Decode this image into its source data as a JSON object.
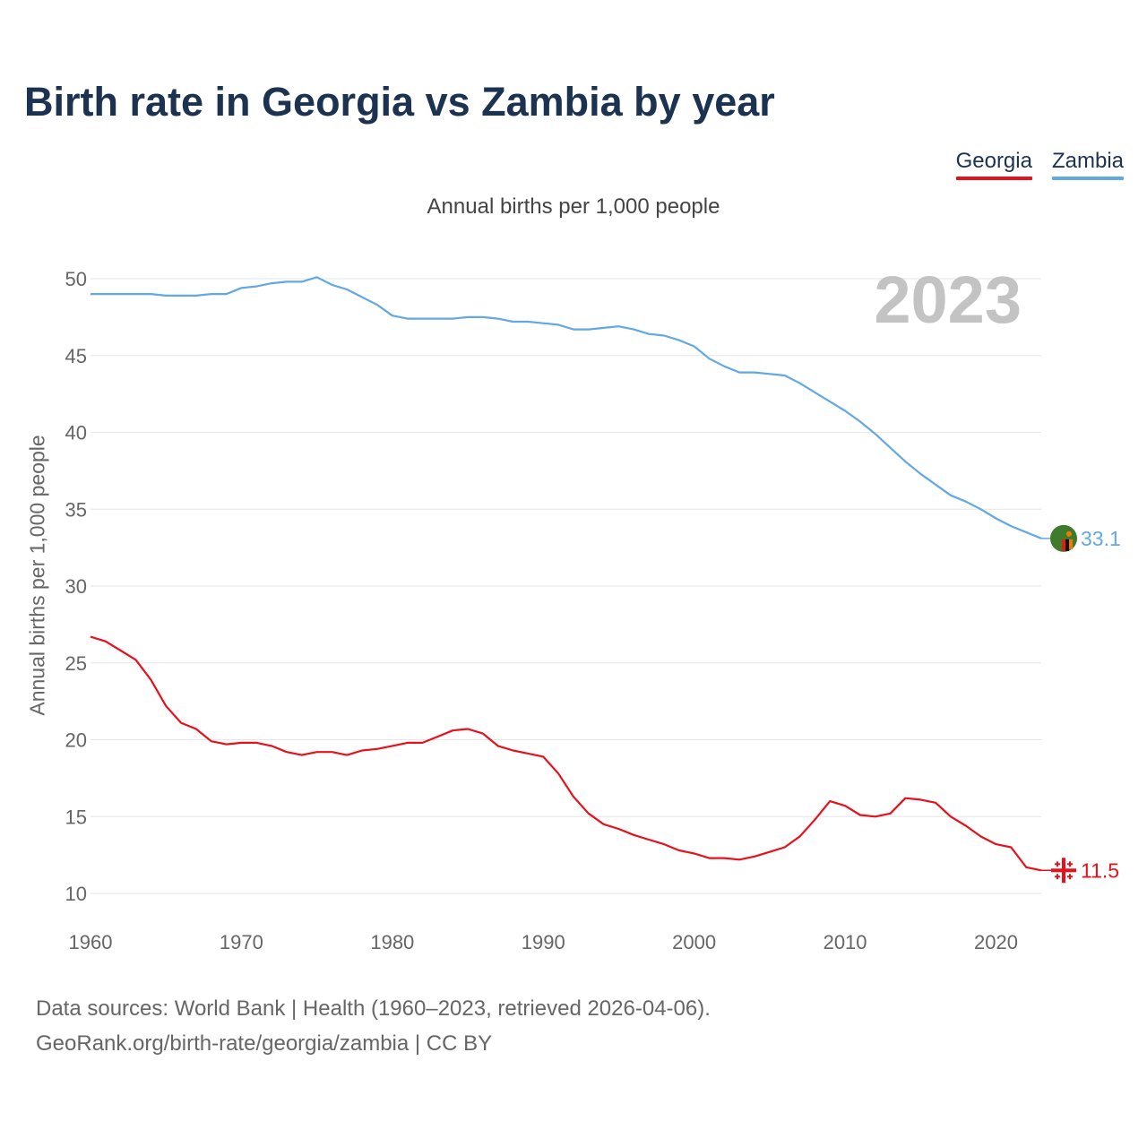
{
  "title": "Birth rate in Georgia vs Zambia by year",
  "legend": [
    {
      "name": "Georgia",
      "color": "#e8111b"
    },
    {
      "name": "Zambia",
      "color": "#62a8e5"
    }
  ],
  "year_label": "2023",
  "flags": {
    "georgia": "georgia-flag-icon",
    "zambia": "zambia-flag-icon"
  },
  "footer": {
    "line1": "Data sources: World Bank | Health (1960–2023, retrieved 2026-04-06).",
    "line2": "GeoRank.org/birth-rate/georgia/zambia | CC BY"
  },
  "chart_data": {
    "type": "line",
    "title": "Birth rate in Georgia vs Zambia by year",
    "subtitle": "Annual births per 1,000 people",
    "xlabel": "",
    "ylabel": "Annual births per 1,000 people",
    "xlim": [
      1960,
      2023
    ],
    "ylim": [
      10,
      50
    ],
    "x_ticks": [
      1960,
      1970,
      1980,
      1990,
      2000,
      2010,
      2020
    ],
    "y_ticks": [
      10,
      15,
      20,
      25,
      30,
      35,
      40,
      45,
      50
    ],
    "grid": true,
    "x": [
      1960,
      1961,
      1962,
      1963,
      1964,
      1965,
      1966,
      1967,
      1968,
      1969,
      1970,
      1971,
      1972,
      1973,
      1974,
      1975,
      1976,
      1977,
      1978,
      1979,
      1980,
      1981,
      1982,
      1983,
      1984,
      1985,
      1986,
      1987,
      1988,
      1989,
      1990,
      1991,
      1992,
      1993,
      1994,
      1995,
      1996,
      1997,
      1998,
      1999,
      2000,
      2001,
      2002,
      2003,
      2004,
      2005,
      2006,
      2007,
      2008,
      2009,
      2010,
      2011,
      2012,
      2013,
      2014,
      2015,
      2016,
      2017,
      2018,
      2019,
      2020,
      2021,
      2022,
      2023
    ],
    "series": [
      {
        "name": "Georgia",
        "color": "#e8111b",
        "end_label": "11.5",
        "values": [
          26.7,
          26.4,
          25.8,
          25.2,
          23.9,
          22.2,
          21.1,
          20.7,
          19.9,
          19.7,
          19.8,
          19.8,
          19.6,
          19.2,
          19.0,
          19.2,
          19.2,
          19.0,
          19.3,
          19.4,
          19.6,
          19.8,
          19.8,
          20.2,
          20.6,
          20.7,
          20.4,
          19.6,
          19.3,
          19.1,
          18.9,
          17.8,
          16.3,
          15.2,
          14.5,
          14.2,
          13.8,
          13.5,
          13.2,
          12.8,
          12.6,
          12.3,
          12.3,
          12.2,
          12.4,
          12.7,
          13.0,
          13.7,
          14.8,
          16.0,
          15.7,
          15.1,
          15.0,
          15.2,
          16.2,
          16.1,
          15.9,
          15.0,
          14.4,
          13.7,
          13.2,
          13.0,
          11.7,
          11.5
        ]
      },
      {
        "name": "Zambia",
        "color": "#62a8e5",
        "end_label": "33.1",
        "values": [
          49.0,
          49.0,
          49.0,
          49.0,
          49.0,
          48.9,
          48.9,
          48.9,
          49.0,
          49.0,
          49.4,
          49.5,
          49.7,
          49.8,
          49.8,
          50.1,
          49.6,
          49.3,
          48.8,
          48.3,
          47.6,
          47.4,
          47.4,
          47.4,
          47.4,
          47.5,
          47.5,
          47.4,
          47.2,
          47.2,
          47.1,
          47.0,
          46.7,
          46.7,
          46.8,
          46.9,
          46.7,
          46.4,
          46.3,
          46.0,
          45.6,
          44.8,
          44.3,
          43.9,
          43.9,
          43.8,
          43.7,
          43.2,
          42.6,
          42.0,
          41.4,
          40.7,
          39.9,
          39.0,
          38.1,
          37.3,
          36.6,
          35.9,
          35.5,
          35.0,
          34.4,
          33.9,
          33.5,
          33.1
        ]
      }
    ]
  }
}
